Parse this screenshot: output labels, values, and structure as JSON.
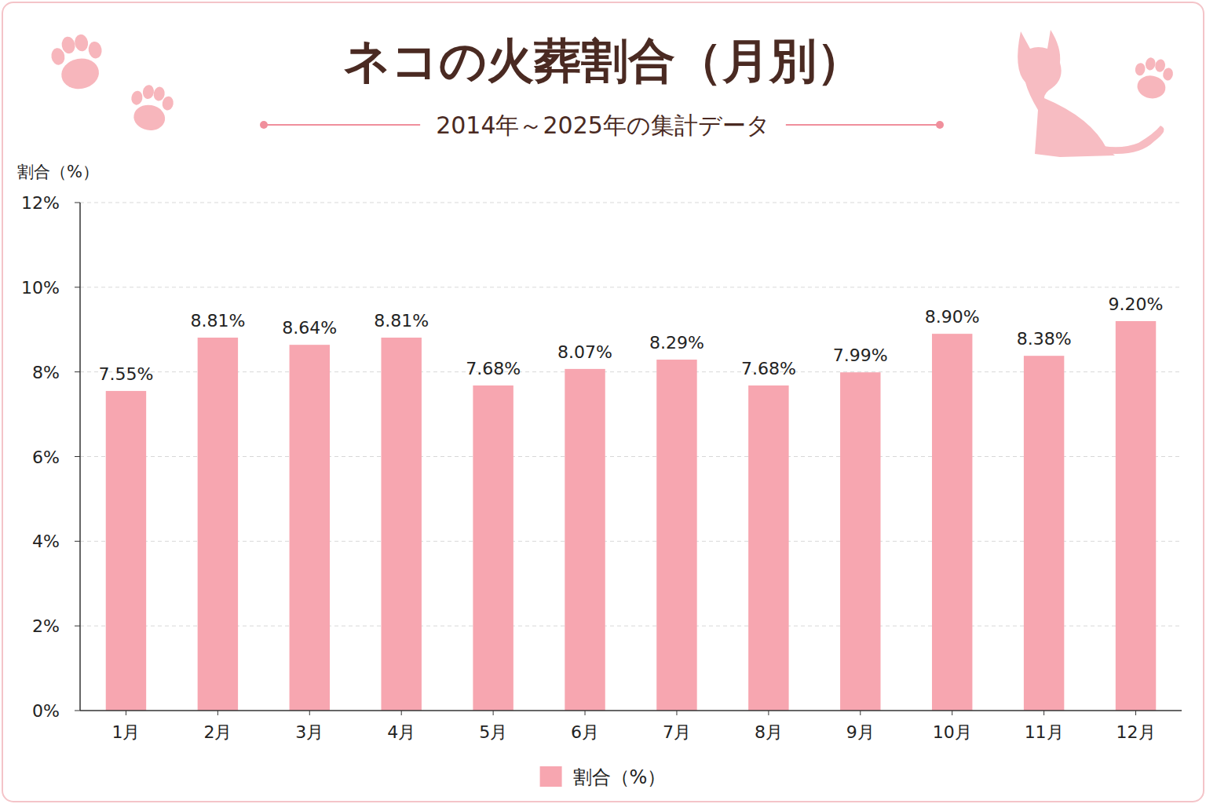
{
  "chart_data": {
    "type": "bar",
    "title": "ネコの火葬割合（月別）",
    "subtitle": "2014年～2025年の集計データ",
    "y_label": "割合（%）",
    "categories": [
      "1月",
      "2月",
      "3月",
      "4月",
      "5月",
      "6月",
      "7月",
      "8月",
      "9月",
      "10月",
      "11月",
      "12月"
    ],
    "series": [
      {
        "name": "割合（%）",
        "color": "#f7a6b0",
        "values": [
          7.55,
          8.81,
          8.64,
          8.81,
          7.68,
          8.07,
          8.29,
          7.68,
          7.99,
          8.9,
          8.38,
          9.2
        ],
        "value_labels": [
          "7.55%",
          "8.81%",
          "8.64%",
          "8.81%",
          "7.68%",
          "8.07%",
          "8.29%",
          "7.68%",
          "7.99%",
          "8.90%",
          "8.38%",
          "9.20%"
        ]
      }
    ],
    "ylim": [
      0,
      12
    ],
    "yticks": [
      {
        "value": 0,
        "label": "0%"
      },
      {
        "value": 2,
        "label": "2%"
      },
      {
        "value": 4,
        "label": "4%"
      },
      {
        "value": 6,
        "label": "6%"
      },
      {
        "value": 8,
        "label": "8%"
      },
      {
        "value": 10,
        "label": "10%"
      },
      {
        "value": 12,
        "label": "12%"
      }
    ],
    "grid": true,
    "data_labels": true,
    "legend": "bottom"
  }
}
